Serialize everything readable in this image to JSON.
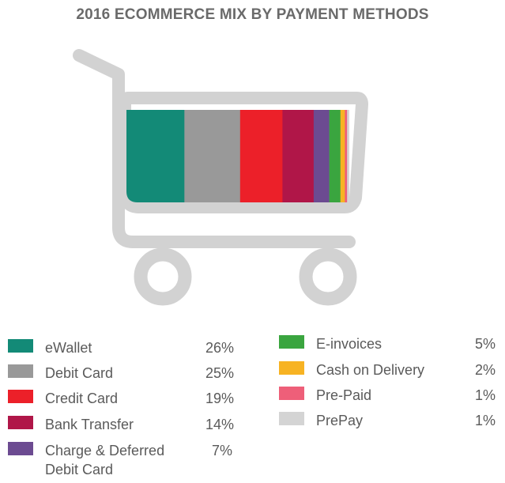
{
  "chart_data": {
    "type": "bar",
    "subtype": "100%-stacked-horizontal",
    "title": "2016 ECOMMERCE MIX BY PAYMENT METHODS",
    "categories": [
      "eWallet",
      "Debit Card",
      "Credit Card",
      "Bank Transfer",
      "Charge & Deferred Debit Card",
      "E-invoices",
      "Cash on Delivery",
      "Pre-Paid",
      "PrePay"
    ],
    "values": [
      26,
      25,
      19,
      14,
      7,
      5,
      2,
      1,
      1
    ],
    "value_labels": [
      "26%",
      "25%",
      "19%",
      "14%",
      "7%",
      "5%",
      "2%",
      "1%",
      "1%"
    ],
    "colors": [
      "#138a77",
      "#999999",
      "#ec2029",
      "#b01648",
      "#6c4b91",
      "#3aa53f",
      "#f7b323",
      "#ee5f79",
      "#d4d4d4"
    ],
    "unit": "%",
    "legend_placement": "bottom",
    "grid": false
  },
  "decoration": {
    "cart_color": "#d2d2d2",
    "icon": "shopping-cart-icon"
  }
}
